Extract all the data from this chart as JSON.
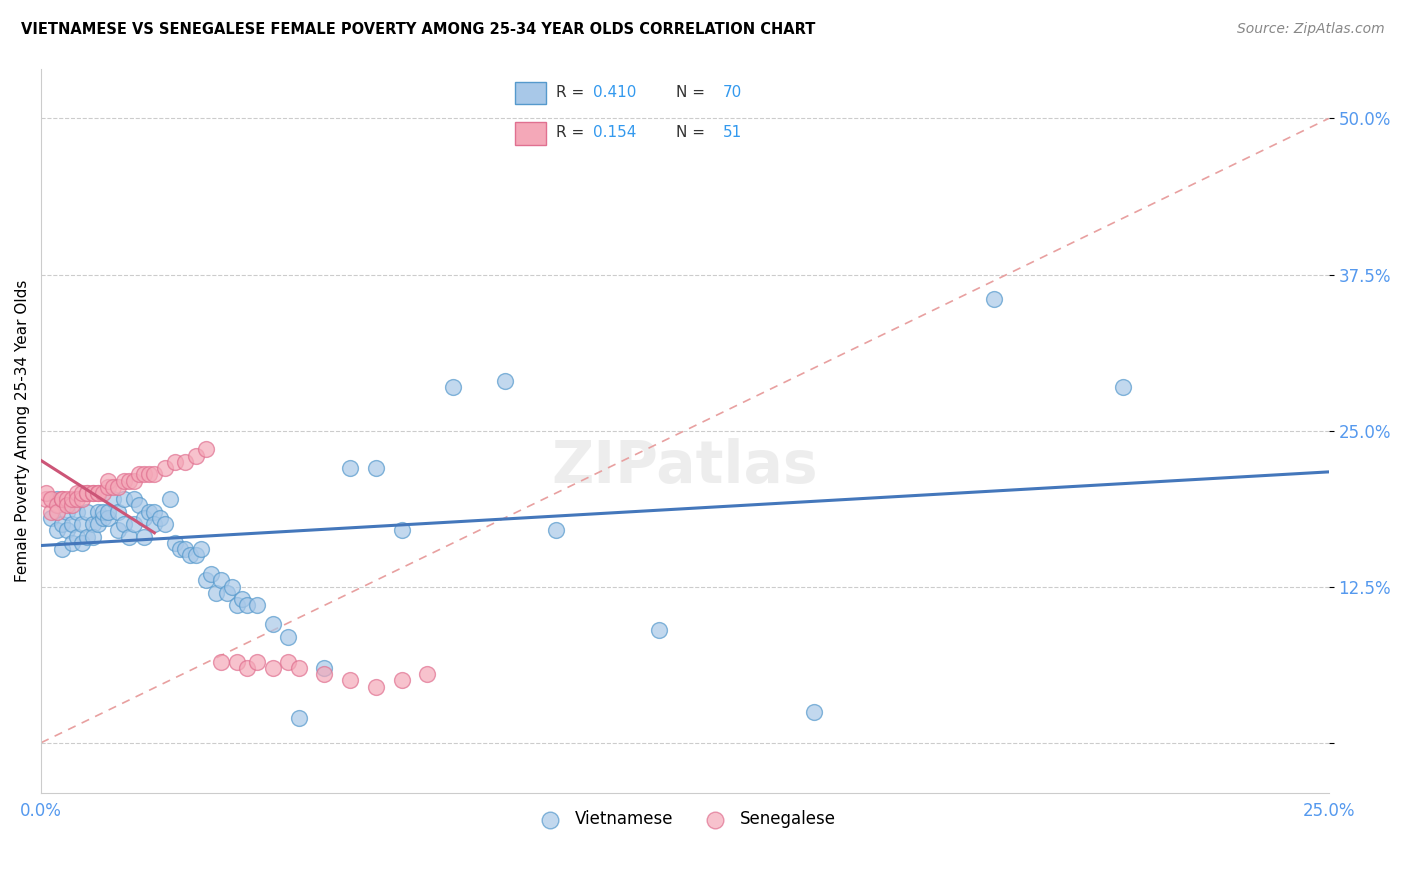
{
  "title": "VIETNAMESE VS SENEGALESE FEMALE POVERTY AMONG 25-34 YEAR OLDS CORRELATION CHART",
  "source": "Source: ZipAtlas.com",
  "ylabel": "Female Poverty Among 25-34 Year Olds",
  "xlim": [
    0.0,
    0.25
  ],
  "ylim": [
    -0.04,
    0.54
  ],
  "ytick_vals": [
    0.0,
    0.125,
    0.25,
    0.375,
    0.5
  ],
  "ytick_labels": [
    "",
    "12.5%",
    "25.0%",
    "37.5%",
    "50.0%"
  ],
  "xtick_vals": [
    0.0,
    0.05,
    0.1,
    0.15,
    0.2,
    0.25
  ],
  "xtick_labels": [
    "0.0%",
    "",
    "",
    "",
    "",
    "25.0%"
  ],
  "color_viet_fill": "#a8c8e8",
  "color_viet_edge": "#5599cc",
  "color_viet_line": "#4477bb",
  "color_sene_fill": "#f4a8b8",
  "color_sene_edge": "#e07090",
  "color_sene_line": "#cc5577",
  "color_refline": "#ccaaaa",
  "tick_color": "#5599ee",
  "viet_x": [
    0.002,
    0.003,
    0.003,
    0.004,
    0.004,
    0.005,
    0.005,
    0.006,
    0.006,
    0.007,
    0.007,
    0.008,
    0.008,
    0.009,
    0.009,
    0.01,
    0.01,
    0.011,
    0.011,
    0.012,
    0.012,
    0.013,
    0.013,
    0.014,
    0.015,
    0.015,
    0.016,
    0.016,
    0.017,
    0.018,
    0.018,
    0.019,
    0.02,
    0.02,
    0.021,
    0.022,
    0.022,
    0.023,
    0.024,
    0.025,
    0.026,
    0.027,
    0.028,
    0.029,
    0.03,
    0.031,
    0.032,
    0.033,
    0.034,
    0.035,
    0.036,
    0.037,
    0.038,
    0.039,
    0.04,
    0.042,
    0.045,
    0.048,
    0.05,
    0.055,
    0.06,
    0.065,
    0.07,
    0.08,
    0.09,
    0.1,
    0.12,
    0.15,
    0.185,
    0.21
  ],
  "viet_y": [
    0.18,
    0.195,
    0.17,
    0.175,
    0.155,
    0.17,
    0.185,
    0.175,
    0.16,
    0.165,
    0.185,
    0.16,
    0.175,
    0.185,
    0.165,
    0.175,
    0.165,
    0.185,
    0.175,
    0.18,
    0.185,
    0.18,
    0.185,
    0.195,
    0.17,
    0.185,
    0.175,
    0.195,
    0.165,
    0.195,
    0.175,
    0.19,
    0.165,
    0.18,
    0.185,
    0.185,
    0.175,
    0.18,
    0.175,
    0.195,
    0.16,
    0.155,
    0.155,
    0.15,
    0.15,
    0.155,
    0.13,
    0.135,
    0.12,
    0.13,
    0.12,
    0.125,
    0.11,
    0.115,
    0.11,
    0.11,
    0.095,
    0.085,
    0.02,
    0.06,
    0.22,
    0.22,
    0.17,
    0.285,
    0.29,
    0.17,
    0.09,
    0.025,
    0.355,
    0.285
  ],
  "sene_x": [
    0.001,
    0.001,
    0.002,
    0.002,
    0.003,
    0.003,
    0.004,
    0.004,
    0.005,
    0.005,
    0.006,
    0.006,
    0.007,
    0.007,
    0.008,
    0.008,
    0.009,
    0.009,
    0.01,
    0.01,
    0.011,
    0.011,
    0.012,
    0.013,
    0.013,
    0.014,
    0.015,
    0.016,
    0.017,
    0.018,
    0.019,
    0.02,
    0.021,
    0.022,
    0.024,
    0.026,
    0.028,
    0.03,
    0.032,
    0.035,
    0.038,
    0.04,
    0.042,
    0.045,
    0.048,
    0.05,
    0.055,
    0.06,
    0.065,
    0.07,
    0.075
  ],
  "sene_y": [
    0.195,
    0.2,
    0.185,
    0.195,
    0.19,
    0.185,
    0.195,
    0.195,
    0.195,
    0.19,
    0.19,
    0.195,
    0.2,
    0.195,
    0.195,
    0.2,
    0.2,
    0.2,
    0.2,
    0.2,
    0.2,
    0.2,
    0.2,
    0.205,
    0.21,
    0.205,
    0.205,
    0.21,
    0.21,
    0.21,
    0.215,
    0.215,
    0.215,
    0.215,
    0.22,
    0.225,
    0.225,
    0.23,
    0.235,
    0.065,
    0.065,
    0.06,
    0.065,
    0.06,
    0.065,
    0.06,
    0.055,
    0.05,
    0.045,
    0.05,
    0.055
  ],
  "legend_items": [
    {
      "r": "0.410",
      "n": "70",
      "fill": "#a8c8e8",
      "edge": "#5599cc"
    },
    {
      "r": "0.154",
      "n": "51",
      "fill": "#f4a8b8",
      "edge": "#e07090"
    }
  ]
}
